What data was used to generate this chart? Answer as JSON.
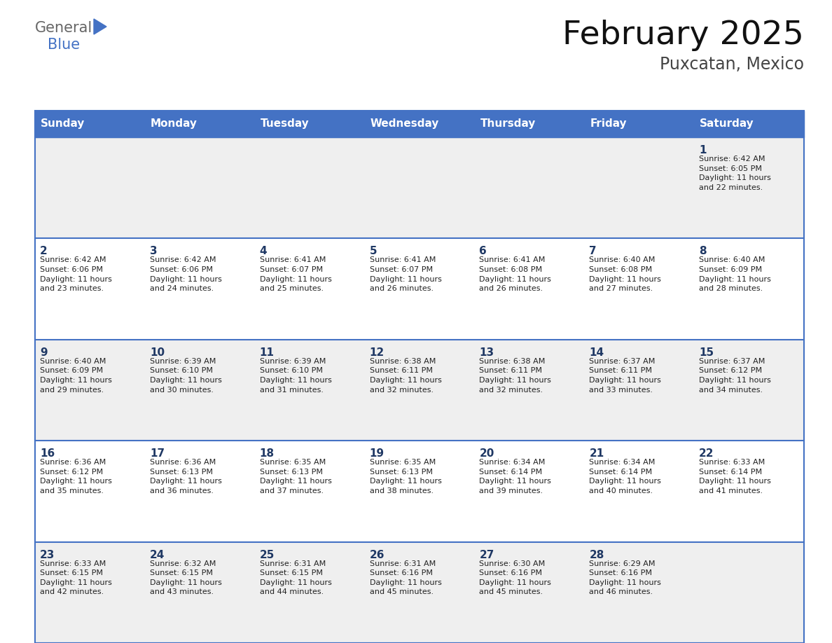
{
  "title": "February 2025",
  "subtitle": "Puxcatan, Mexico",
  "header_bg_color": "#4472C4",
  "header_text_color": "#FFFFFF",
  "days_of_week": [
    "Sunday",
    "Monday",
    "Tuesday",
    "Wednesday",
    "Thursday",
    "Friday",
    "Saturday"
  ],
  "row_bg_even": "#EFEFEF",
  "row_bg_odd": "#FFFFFF",
  "cell_text_color": "#222222",
  "day_num_color": "#1F3864",
  "border_color": "#4472C4",
  "calendar": [
    [
      {
        "day": null,
        "info": null
      },
      {
        "day": null,
        "info": null
      },
      {
        "day": null,
        "info": null
      },
      {
        "day": null,
        "info": null
      },
      {
        "day": null,
        "info": null
      },
      {
        "day": null,
        "info": null
      },
      {
        "day": 1,
        "info": "Sunrise: 6:42 AM\nSunset: 6:05 PM\nDaylight: 11 hours\nand 22 minutes."
      }
    ],
    [
      {
        "day": 2,
        "info": "Sunrise: 6:42 AM\nSunset: 6:06 PM\nDaylight: 11 hours\nand 23 minutes."
      },
      {
        "day": 3,
        "info": "Sunrise: 6:42 AM\nSunset: 6:06 PM\nDaylight: 11 hours\nand 24 minutes."
      },
      {
        "day": 4,
        "info": "Sunrise: 6:41 AM\nSunset: 6:07 PM\nDaylight: 11 hours\nand 25 minutes."
      },
      {
        "day": 5,
        "info": "Sunrise: 6:41 AM\nSunset: 6:07 PM\nDaylight: 11 hours\nand 26 minutes."
      },
      {
        "day": 6,
        "info": "Sunrise: 6:41 AM\nSunset: 6:08 PM\nDaylight: 11 hours\nand 26 minutes."
      },
      {
        "day": 7,
        "info": "Sunrise: 6:40 AM\nSunset: 6:08 PM\nDaylight: 11 hours\nand 27 minutes."
      },
      {
        "day": 8,
        "info": "Sunrise: 6:40 AM\nSunset: 6:09 PM\nDaylight: 11 hours\nand 28 minutes."
      }
    ],
    [
      {
        "day": 9,
        "info": "Sunrise: 6:40 AM\nSunset: 6:09 PM\nDaylight: 11 hours\nand 29 minutes."
      },
      {
        "day": 10,
        "info": "Sunrise: 6:39 AM\nSunset: 6:10 PM\nDaylight: 11 hours\nand 30 minutes."
      },
      {
        "day": 11,
        "info": "Sunrise: 6:39 AM\nSunset: 6:10 PM\nDaylight: 11 hours\nand 31 minutes."
      },
      {
        "day": 12,
        "info": "Sunrise: 6:38 AM\nSunset: 6:11 PM\nDaylight: 11 hours\nand 32 minutes."
      },
      {
        "day": 13,
        "info": "Sunrise: 6:38 AM\nSunset: 6:11 PM\nDaylight: 11 hours\nand 32 minutes."
      },
      {
        "day": 14,
        "info": "Sunrise: 6:37 AM\nSunset: 6:11 PM\nDaylight: 11 hours\nand 33 minutes."
      },
      {
        "day": 15,
        "info": "Sunrise: 6:37 AM\nSunset: 6:12 PM\nDaylight: 11 hours\nand 34 minutes."
      }
    ],
    [
      {
        "day": 16,
        "info": "Sunrise: 6:36 AM\nSunset: 6:12 PM\nDaylight: 11 hours\nand 35 minutes."
      },
      {
        "day": 17,
        "info": "Sunrise: 6:36 AM\nSunset: 6:13 PM\nDaylight: 11 hours\nand 36 minutes."
      },
      {
        "day": 18,
        "info": "Sunrise: 6:35 AM\nSunset: 6:13 PM\nDaylight: 11 hours\nand 37 minutes."
      },
      {
        "day": 19,
        "info": "Sunrise: 6:35 AM\nSunset: 6:13 PM\nDaylight: 11 hours\nand 38 minutes."
      },
      {
        "day": 20,
        "info": "Sunrise: 6:34 AM\nSunset: 6:14 PM\nDaylight: 11 hours\nand 39 minutes."
      },
      {
        "day": 21,
        "info": "Sunrise: 6:34 AM\nSunset: 6:14 PM\nDaylight: 11 hours\nand 40 minutes."
      },
      {
        "day": 22,
        "info": "Sunrise: 6:33 AM\nSunset: 6:14 PM\nDaylight: 11 hours\nand 41 minutes."
      }
    ],
    [
      {
        "day": 23,
        "info": "Sunrise: 6:33 AM\nSunset: 6:15 PM\nDaylight: 11 hours\nand 42 minutes."
      },
      {
        "day": 24,
        "info": "Sunrise: 6:32 AM\nSunset: 6:15 PM\nDaylight: 11 hours\nand 43 minutes."
      },
      {
        "day": 25,
        "info": "Sunrise: 6:31 AM\nSunset: 6:15 PM\nDaylight: 11 hours\nand 44 minutes."
      },
      {
        "day": 26,
        "info": "Sunrise: 6:31 AM\nSunset: 6:16 PM\nDaylight: 11 hours\nand 45 minutes."
      },
      {
        "day": 27,
        "info": "Sunrise: 6:30 AM\nSunset: 6:16 PM\nDaylight: 11 hours\nand 45 minutes."
      },
      {
        "day": 28,
        "info": "Sunrise: 6:29 AM\nSunset: 6:16 PM\nDaylight: 11 hours\nand 46 minutes."
      },
      {
        "day": null,
        "info": null
      }
    ]
  ],
  "logo_gray": "#666666",
  "logo_blue": "#4472C4",
  "fig_width": 11.88,
  "fig_height": 9.18,
  "dpi": 100
}
